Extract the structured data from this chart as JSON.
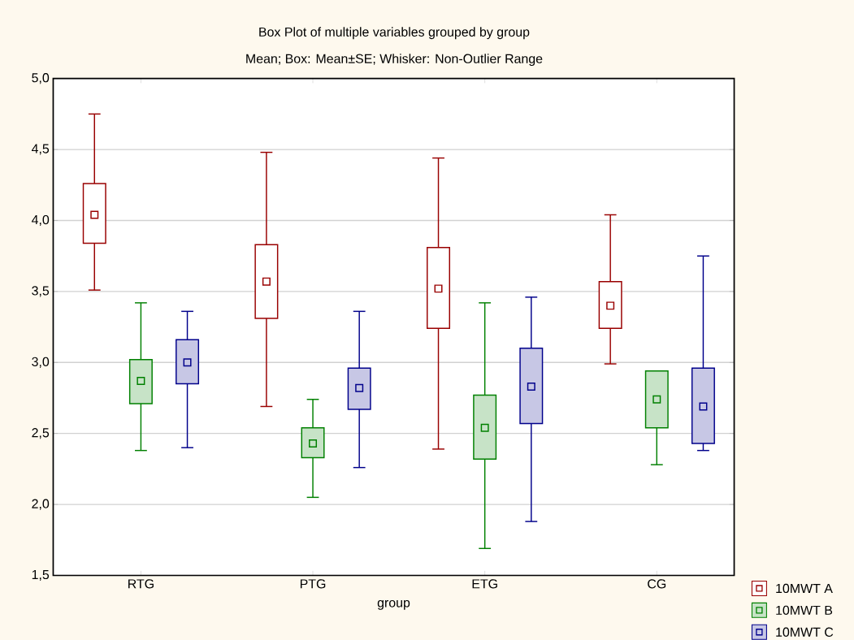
{
  "chart_data": {
    "type": "box",
    "title": "Box Plot of multiple variables grouped by  group",
    "subtitle": "Mean; Box: Mean±SE; Whisker: Non-Outlier Range",
    "xlabel": "group",
    "categories": [
      "RTG",
      "PTG",
      "ETG",
      "CG"
    ],
    "ylim": [
      1.5,
      5.0
    ],
    "yticks": [
      {
        "value": 1.5,
        "label": "1,5"
      },
      {
        "value": 2.0,
        "label": "2,0"
      },
      {
        "value": 2.5,
        "label": "2,5"
      },
      {
        "value": 3.0,
        "label": "3,0"
      },
      {
        "value": 3.5,
        "label": "3,5"
      },
      {
        "value": 4.0,
        "label": "4,0"
      },
      {
        "value": 4.5,
        "label": "4,5"
      },
      {
        "value": 5.0,
        "label": "5,0"
      }
    ],
    "grid": "y",
    "legend": "bottom right",
    "marker": "square",
    "series": [
      {
        "name": "10MWT A",
        "color": "#990000",
        "boxes": [
          {
            "low": 3.51,
            "q1": 3.84,
            "median": 4.04,
            "q3": 4.26,
            "high": 4.75
          },
          {
            "low": 2.69,
            "q1": 3.31,
            "median": 3.57,
            "q3": 3.83,
            "high": 4.48
          },
          {
            "low": 2.39,
            "q1": 3.24,
            "median": 3.52,
            "q3": 3.81,
            "high": 4.44
          },
          {
            "low": 2.99,
            "q1": 3.24,
            "median": 3.4,
            "q3": 3.57,
            "high": 4.04
          }
        ]
      },
      {
        "name": "10MWT B",
        "color": "#008000",
        "boxes": [
          {
            "low": 2.38,
            "q1": 2.71,
            "median": 2.87,
            "q3": 3.02,
            "high": 3.42
          },
          {
            "low": 2.05,
            "q1": 2.33,
            "median": 2.43,
            "q3": 2.54,
            "high": 2.74
          },
          {
            "low": 1.69,
            "q1": 2.32,
            "median": 2.54,
            "q3": 2.77,
            "high": 3.42
          },
          {
            "low": 2.28,
            "q1": 2.54,
            "median": 2.74,
            "q3": 2.94,
            "high": 2.94
          }
        ]
      },
      {
        "name": "10MWT C",
        "color": "#00008b",
        "boxes": [
          {
            "low": 2.4,
            "q1": 2.85,
            "median": 3.0,
            "q3": 3.16,
            "high": 3.36
          },
          {
            "low": 2.26,
            "q1": 2.67,
            "median": 2.82,
            "q3": 2.96,
            "high": 3.36
          },
          {
            "low": 1.88,
            "q1": 2.57,
            "median": 2.83,
            "q3": 3.1,
            "high": 3.46
          },
          {
            "low": 2.38,
            "q1": 2.43,
            "median": 2.69,
            "q3": 2.96,
            "high": 3.75
          }
        ]
      }
    ]
  }
}
